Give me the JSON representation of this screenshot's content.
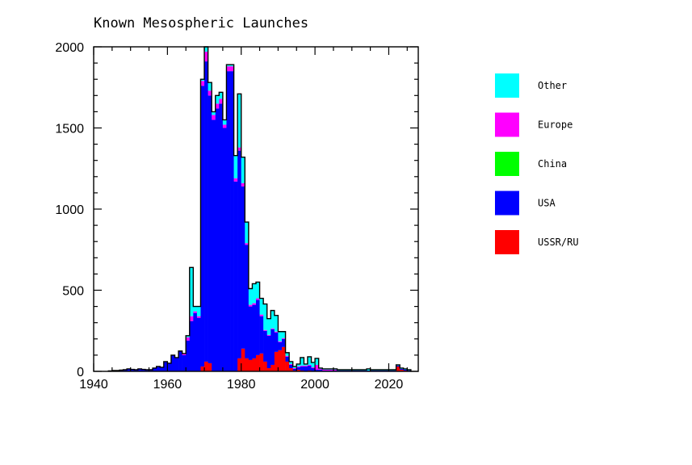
{
  "chart_data": {
    "type": "bar",
    "stacked": true,
    "title": "Known Mesospheric Launches",
    "xlabel": "",
    "ylabel": "",
    "xlim": [
      1940,
      2028
    ],
    "ylim": [
      0,
      2000
    ],
    "xticks": [
      "1940",
      "1960",
      "1980",
      "2000",
      "2020"
    ],
    "yticks": [
      "0",
      "500",
      "1000",
      "1500",
      "2000"
    ],
    "grid": false,
    "legend_position": "right",
    "categories": [
      1944,
      1945,
      1946,
      1947,
      1948,
      1949,
      1950,
      1951,
      1952,
      1953,
      1954,
      1955,
      1956,
      1957,
      1958,
      1959,
      1960,
      1961,
      1962,
      1963,
      1964,
      1965,
      1966,
      1967,
      1968,
      1969,
      1970,
      1971,
      1972,
      1973,
      1974,
      1975,
      1976,
      1977,
      1978,
      1979,
      1980,
      1981,
      1982,
      1983,
      1984,
      1985,
      1986,
      1987,
      1988,
      1989,
      1990,
      1991,
      1992,
      1993,
      1994,
      1995,
      1996,
      1997,
      1998,
      1999,
      2000,
      2001,
      2002,
      2003,
      2004,
      2005,
      2006,
      2007,
      2008,
      2009,
      2010,
      2011,
      2012,
      2013,
      2014,
      2015,
      2016,
      2017,
      2018,
      2019,
      2020,
      2021,
      2022,
      2023,
      2024,
      2025
    ],
    "series": [
      {
        "name": "USSR/RU",
        "color": "#ff0000",
        "values": [
          0,
          0,
          0,
          0,
          0,
          0,
          0,
          0,
          0,
          0,
          0,
          0,
          0,
          0,
          0,
          0,
          0,
          0,
          0,
          0,
          0,
          0,
          0,
          0,
          0,
          30,
          60,
          50,
          0,
          0,
          0,
          0,
          0,
          0,
          0,
          80,
          140,
          80,
          70,
          80,
          100,
          110,
          60,
          20,
          40,
          120,
          130,
          150,
          60,
          20,
          5,
          10,
          5,
          0,
          5,
          0,
          0,
          0,
          0,
          0,
          0,
          0,
          0,
          0,
          0,
          0,
          0,
          0,
          0,
          0,
          0,
          0,
          0,
          0,
          0,
          0,
          0,
          0,
          30,
          10,
          5,
          0
        ]
      },
      {
        "name": "USA",
        "color": "#0000ff",
        "values": [
          3,
          5,
          5,
          8,
          10,
          15,
          12,
          10,
          15,
          12,
          10,
          10,
          20,
          30,
          25,
          60,
          50,
          100,
          85,
          125,
          100,
          190,
          310,
          360,
          330,
          1730,
          1850,
          1650,
          1550,
          1620,
          1650,
          1500,
          1850,
          1850,
          1170,
          1280,
          1000,
          700,
          330,
          330,
          340,
          230,
          190,
          200,
          220,
          120,
          50,
          50,
          30,
          20,
          10,
          15,
          25,
          30,
          30,
          20,
          10,
          10,
          5,
          5,
          5,
          5,
          5,
          5,
          5,
          5,
          5,
          5,
          5,
          5,
          5,
          5,
          5,
          5,
          5,
          5,
          5,
          5,
          5,
          5,
          5,
          5
        ]
      },
      {
        "name": "China",
        "color": "#00ff00",
        "values": [
          0,
          0,
          0,
          0,
          0,
          0,
          0,
          0,
          0,
          0,
          0,
          0,
          0,
          0,
          0,
          0,
          0,
          0,
          0,
          0,
          0,
          0,
          0,
          0,
          0,
          0,
          0,
          0,
          0,
          0,
          0,
          0,
          0,
          0,
          0,
          0,
          0,
          0,
          0,
          0,
          0,
          0,
          0,
          0,
          0,
          0,
          0,
          0,
          0,
          0,
          0,
          0,
          0,
          0,
          0,
          0,
          0,
          0,
          0,
          0,
          0,
          0,
          0,
          0,
          0,
          0,
          0,
          0,
          0,
          0,
          0,
          0,
          0,
          0,
          0,
          0,
          0,
          0,
          0,
          0,
          0,
          0
        ]
      },
      {
        "name": "Europe",
        "color": "#ff00ff",
        "values": [
          0,
          0,
          0,
          0,
          0,
          0,
          0,
          0,
          0,
          0,
          0,
          0,
          0,
          0,
          0,
          0,
          0,
          0,
          0,
          0,
          10,
          20,
          30,
          10,
          10,
          30,
          60,
          30,
          30,
          30,
          30,
          20,
          30,
          30,
          20,
          20,
          20,
          10,
          10,
          10,
          10,
          10,
          5,
          5,
          5,
          5,
          5,
          5,
          5,
          5,
          5,
          5,
          5,
          5,
          5,
          5,
          30,
          5,
          5,
          5,
          5,
          5,
          0,
          0,
          0,
          0,
          0,
          0,
          0,
          0,
          0,
          0,
          0,
          0,
          0,
          0,
          0,
          0,
          0,
          0,
          0,
          0
        ]
      },
      {
        "name": "Other",
        "color": "#00ffff",
        "values": [
          0,
          0,
          0,
          0,
          0,
          0,
          0,
          0,
          0,
          0,
          0,
          0,
          0,
          0,
          0,
          0,
          0,
          0,
          0,
          0,
          0,
          10,
          300,
          30,
          60,
          10,
          30,
          50,
          20,
          50,
          40,
          30,
          10,
          10,
          140,
          330,
          160,
          130,
          100,
          120,
          100,
          100,
          160,
          100,
          110,
          100,
          60,
          40,
          20,
          15,
          10,
          15,
          50,
          10,
          50,
          30,
          40,
          5,
          5,
          5,
          5,
          5,
          5,
          5,
          5,
          5,
          5,
          5,
          5,
          5,
          10,
          5,
          5,
          5,
          5,
          5,
          5,
          5,
          5,
          5,
          5,
          5
        ]
      }
    ]
  }
}
